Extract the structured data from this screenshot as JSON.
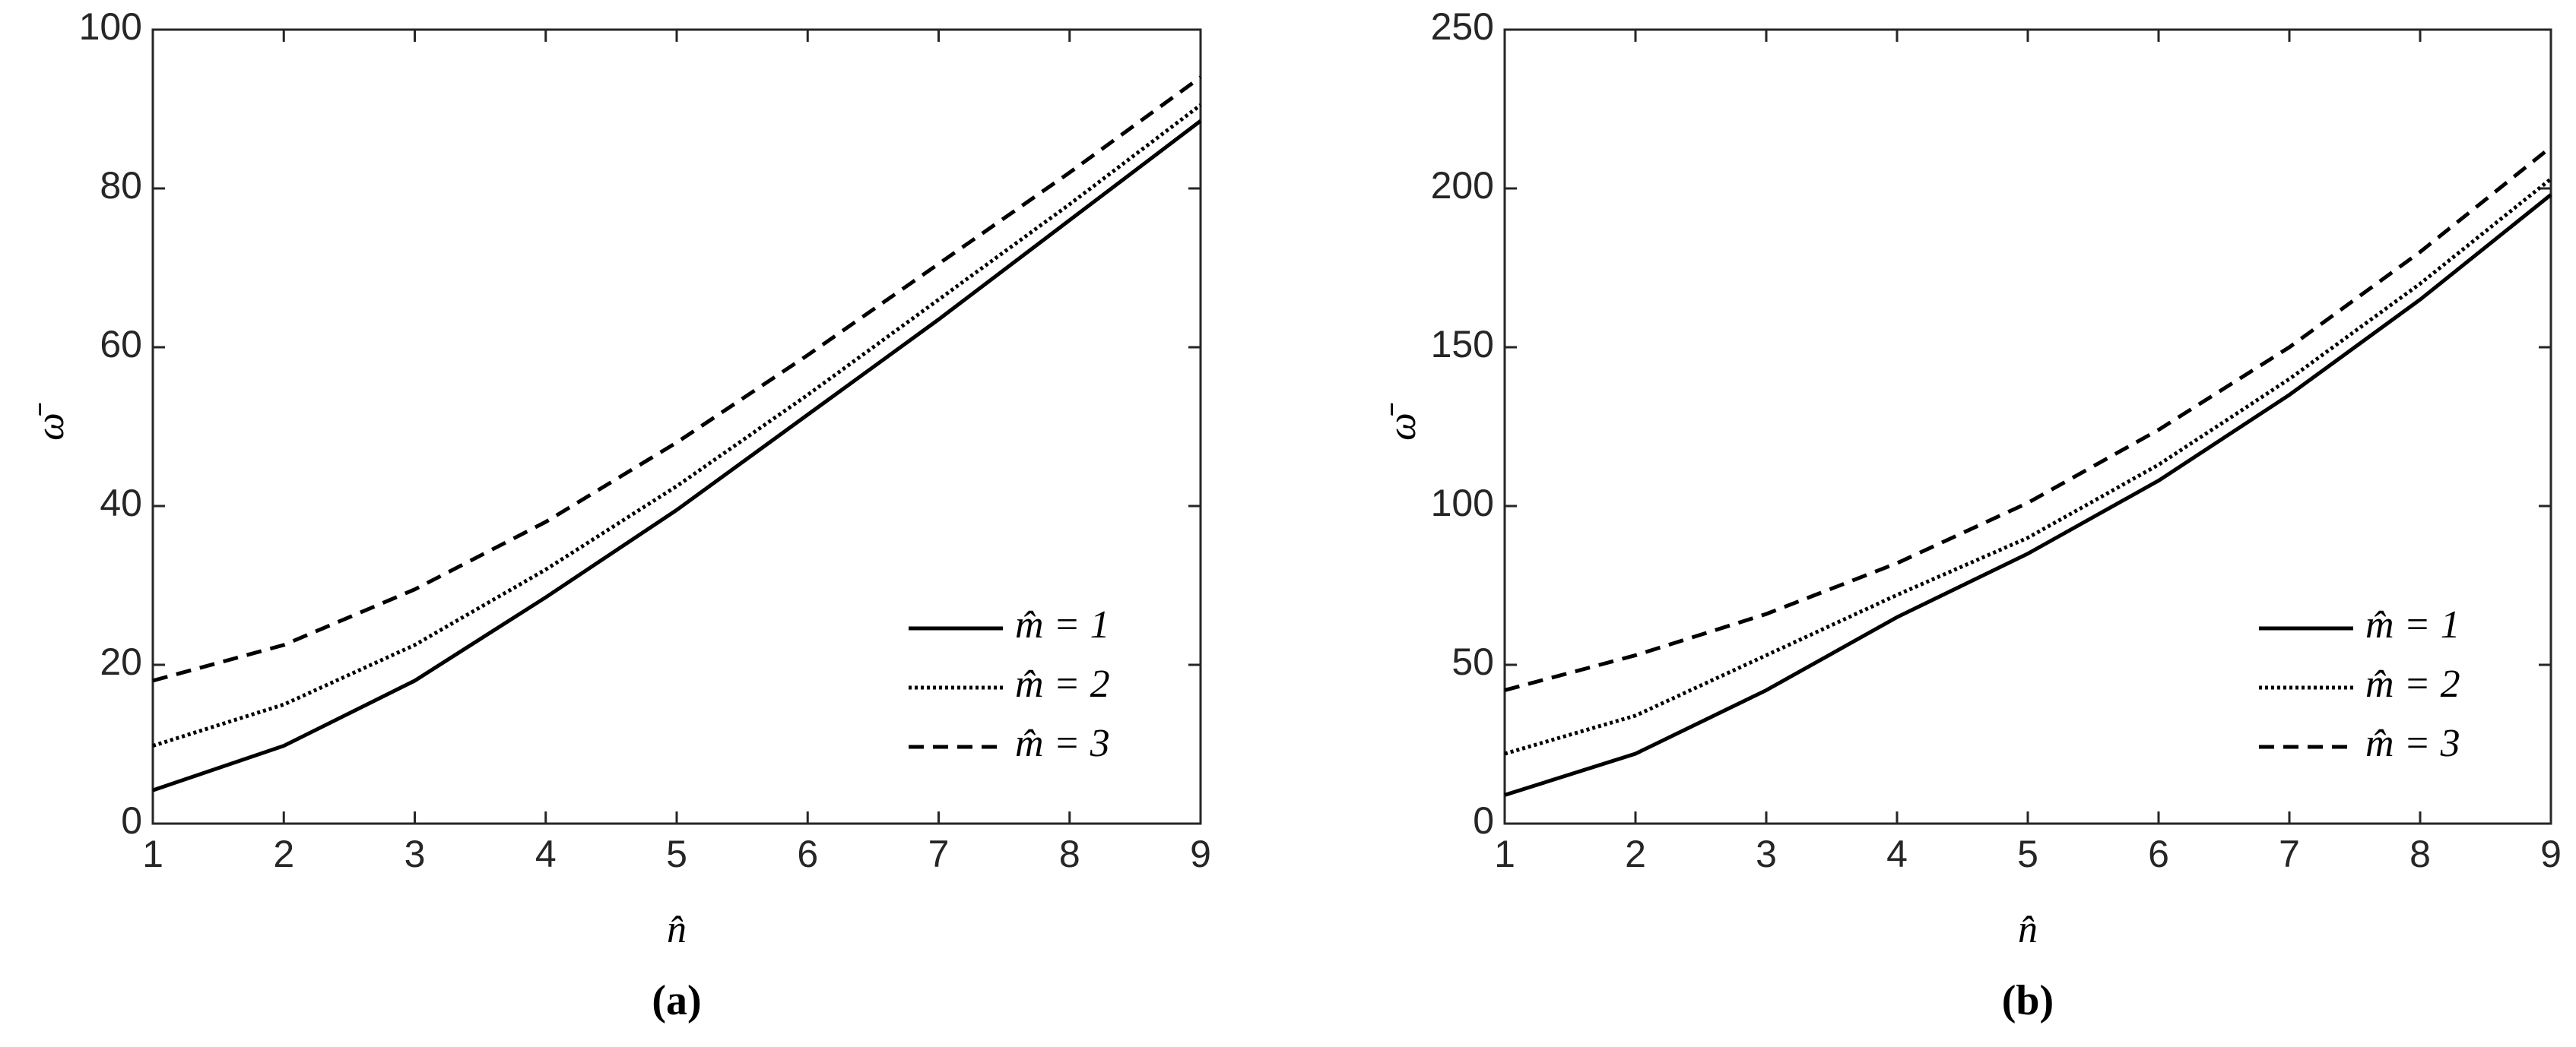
{
  "chart_data": [
    {
      "type": "line",
      "caption": "(a)",
      "x_label": "n̂",
      "y_label": "ω̄",
      "x": [
        1,
        2,
        3,
        4,
        5,
        6,
        7,
        8,
        9
      ],
      "xlim": [
        1,
        9
      ],
      "xticks": [
        1,
        2,
        3,
        4,
        5,
        6,
        7,
        8,
        9
      ],
      "ylim": [
        0,
        100
      ],
      "yticks": [
        0,
        20,
        40,
        60,
        80,
        100
      ],
      "legend": "lower right",
      "series": [
        {
          "name": "m̂ = 1",
          "color": "#000000",
          "style": "solid",
          "values": [
            4.2,
            9.8,
            18,
            28.5,
            39.5,
            51.5,
            63.5,
            76,
            88.5
          ]
        },
        {
          "name": "m̂ = 2",
          "color": "#000000",
          "style": "dotted",
          "values": [
            9.8,
            15,
            22.5,
            32,
            42.5,
            54,
            66,
            78,
            90.5
          ]
        },
        {
          "name": "m̂ = 3",
          "color": "#000000",
          "style": "dashed",
          "values": [
            18,
            22.5,
            29.5,
            38,
            48,
            59,
            70.5,
            82,
            94
          ]
        }
      ]
    },
    {
      "type": "line",
      "caption": "(b)",
      "x_label": "n̂",
      "y_label": "ω̄",
      "x": [
        1,
        2,
        3,
        4,
        5,
        6,
        7,
        8,
        9
      ],
      "xlim": [
        1,
        9
      ],
      "xticks": [
        1,
        2,
        3,
        4,
        5,
        6,
        7,
        8,
        9
      ],
      "ylim": [
        0,
        250
      ],
      "yticks": [
        0,
        50,
        100,
        150,
        200,
        250
      ],
      "legend": "lower right",
      "series": [
        {
          "name": "m̂ = 1",
          "color": "#000000",
          "style": "solid",
          "values": [
            9,
            22,
            42,
            65,
            85,
            108,
            135,
            165,
            198
          ]
        },
        {
          "name": "m̂ = 2",
          "color": "#000000",
          "style": "dotted",
          "values": [
            22,
            34,
            53,
            72,
            90,
            113,
            140,
            170,
            203
          ]
        },
        {
          "name": "m̂ = 3",
          "color": "#000000",
          "style": "dashed",
          "values": [
            42,
            53,
            66,
            82,
            101,
            124,
            150,
            180,
            213
          ]
        }
      ]
    }
  ]
}
